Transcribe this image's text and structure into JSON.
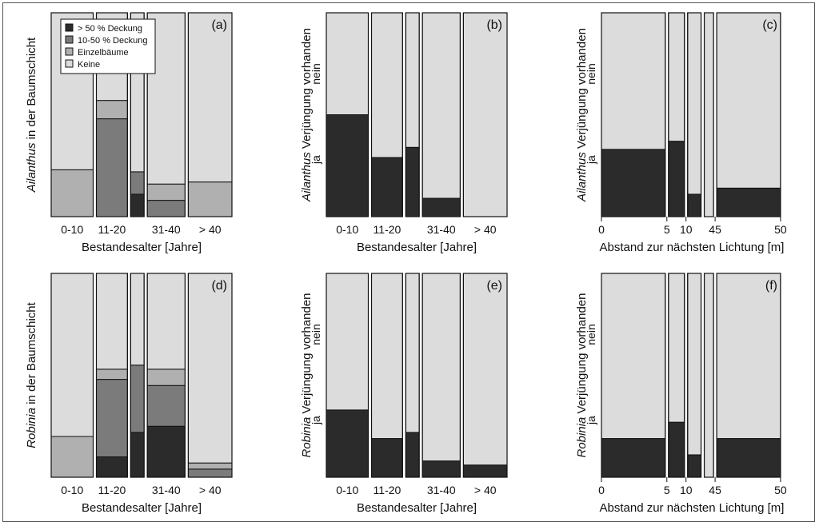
{
  "colors": {
    "gt50": "#2b2b2b",
    "d1050": "#7b7b7b",
    "einzel": "#b0b0b0",
    "keine": "#dcdcdc",
    "border": "#111111"
  },
  "legend": {
    "items": [
      {
        "key": "gt50",
        "label": "> 50 % Deckung"
      },
      {
        "key": "d1050",
        "label": "10-50 % Deckung"
      },
      {
        "key": "einzel",
        "label": "Einzelbäume"
      },
      {
        "key": "keine",
        "label": "Keine"
      }
    ]
  },
  "chart_data": [
    {
      "id": "a",
      "type": "mosaic",
      "panel_label": "(a)",
      "ylabel_italic": "Ailanthus",
      "ylabel_rest": " in der Baumschicht",
      "xlabel": "Bestandesalter [Jahre]",
      "categories": [
        "0-10",
        "11-20",
        "",
        "31-40",
        "> 40"
      ],
      "widths": [
        0.25,
        0.185,
        0.08,
        0.225,
        0.26
      ],
      "stack_order": [
        "gt50",
        "d1050",
        "einzel",
        "keine"
      ],
      "values": [
        [
          0,
          0,
          0.23,
          0.77
        ],
        [
          0,
          0.48,
          0.09,
          0.43
        ],
        [
          0.11,
          0.11,
          0,
          0.78
        ],
        [
          0,
          0.08,
          0.08,
          0.84
        ],
        [
          0,
          0,
          0.17,
          0.83
        ]
      ],
      "legend": true
    },
    {
      "id": "b",
      "type": "mosaic",
      "panel_label": "(b)",
      "ylabel_italic": "Ailanthus",
      "ylabel_rest": " Verjüngung vorhanden",
      "y_cat_labels": [
        "ja",
        "nein"
      ],
      "xlabel": "Bestandesalter [Jahre]",
      "categories": [
        "0-10",
        "11-20",
        "",
        "31-40",
        "> 40"
      ],
      "widths": [
        0.25,
        0.185,
        0.08,
        0.225,
        0.26
      ],
      "stack_order": [
        "ja",
        "nein"
      ],
      "values": [
        [
          0.5,
          0.5
        ],
        [
          0.29,
          0.71
        ],
        [
          0.34,
          0.66
        ],
        [
          0.09,
          0.91
        ],
        [
          0,
          1
        ]
      ]
    },
    {
      "id": "c",
      "type": "mosaic",
      "panel_label": "(c)",
      "ylabel_italic": "Ailanthus",
      "ylabel_rest": " Verjüngung vorhanden",
      "y_cat_labels": [
        "ja",
        "nein"
      ],
      "xlabel": "Abstand zur nächsten Lichtung [m]",
      "x_ticks": [
        "0",
        "5",
        "10",
        "45",
        "50"
      ],
      "tick_at": [
        0,
        1,
        2,
        4,
        5
      ],
      "widths": [
        0.38,
        0.095,
        0.08,
        0.055,
        0.38
      ],
      "stack_order": [
        "ja",
        "nein"
      ],
      "values": [
        [
          0.33,
          0.67
        ],
        [
          0.37,
          0.63
        ],
        [
          0.11,
          0.89
        ],
        [
          0,
          1
        ],
        [
          0.14,
          0.86
        ]
      ]
    },
    {
      "id": "d",
      "type": "mosaic",
      "panel_label": "(d)",
      "ylabel_italic": "Robinia",
      "ylabel_rest": " in der Baumschicht",
      "xlabel": "Bestandesalter [Jahre]",
      "categories": [
        "0-10",
        "11-20",
        "",
        "31-40",
        "> 40"
      ],
      "widths": [
        0.25,
        0.185,
        0.08,
        0.225,
        0.26
      ],
      "stack_order": [
        "gt50",
        "d1050",
        "einzel",
        "keine"
      ],
      "values": [
        [
          0,
          0,
          0.2,
          0.8
        ],
        [
          0.1,
          0.38,
          0.05,
          0.47
        ],
        [
          0.22,
          0.33,
          0,
          0.45
        ],
        [
          0.25,
          0.2,
          0.08,
          0.47
        ],
        [
          0,
          0.04,
          0.03,
          0.93
        ]
      ]
    },
    {
      "id": "e",
      "type": "mosaic",
      "panel_label": "(e)",
      "ylabel_italic": "Robinia",
      "ylabel_rest": " Verjüngung vorhanden",
      "y_cat_labels": [
        "ja",
        "nein"
      ],
      "xlabel": "Bestandesalter [Jahre]",
      "categories": [
        "0-10",
        "11-20",
        "",
        "31-40",
        "> 40"
      ],
      "widths": [
        0.25,
        0.185,
        0.08,
        0.225,
        0.26
      ],
      "stack_order": [
        "ja",
        "nein"
      ],
      "values": [
        [
          0.33,
          0.67
        ],
        [
          0.19,
          0.81
        ],
        [
          0.22,
          0.78
        ],
        [
          0.08,
          0.92
        ],
        [
          0.06,
          0.94
        ]
      ]
    },
    {
      "id": "f",
      "type": "mosaic",
      "panel_label": "(f)",
      "ylabel_italic": "Robinia",
      "ylabel_rest": " Verjüngung vorhanden",
      "y_cat_labels": [
        "ja",
        "nein"
      ],
      "xlabel": "Abstand zur nächsten Lichtung [m]",
      "x_ticks": [
        "0",
        "5",
        "10",
        "45",
        "50"
      ],
      "tick_at": [
        0,
        1,
        2,
        4,
        5
      ],
      "widths": [
        0.38,
        0.095,
        0.08,
        0.055,
        0.38
      ],
      "stack_order": [
        "ja",
        "nein"
      ],
      "values": [
        [
          0.19,
          0.81
        ],
        [
          0.27,
          0.73
        ],
        [
          0.11,
          0.89
        ],
        [
          0,
          1
        ],
        [
          0.19,
          0.81
        ]
      ]
    }
  ]
}
